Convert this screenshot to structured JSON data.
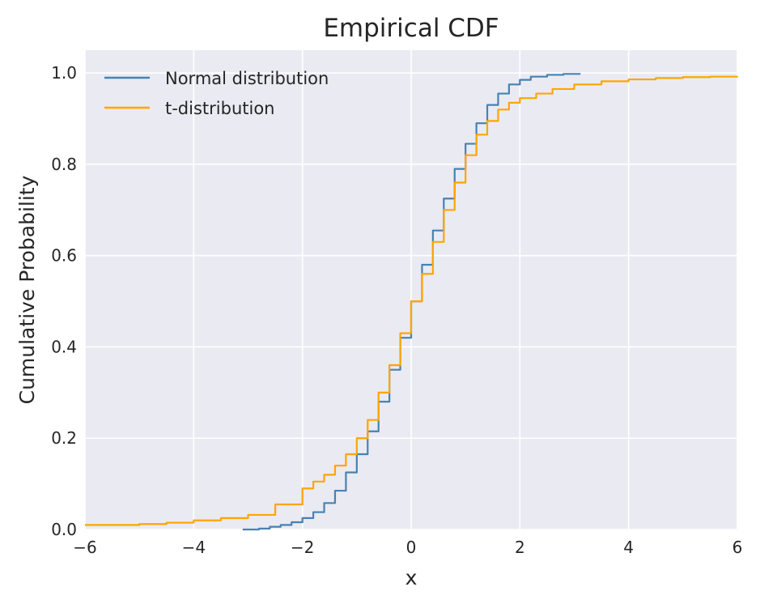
{
  "chart_data": {
    "type": "line",
    "title": "Empirical CDF",
    "xlabel": "x",
    "ylabel": "Cumulative Probability",
    "xlim": [
      -6,
      6
    ],
    "ylim": [
      0.0,
      1.05
    ],
    "xticks": [
      -6,
      -4,
      -2,
      0,
      2,
      4,
      6
    ],
    "xtick_labels": [
      "−6",
      "−4",
      "−2",
      "0",
      "2",
      "4",
      "6"
    ],
    "yticks": [
      0.0,
      0.2,
      0.4,
      0.6,
      0.8,
      1.0
    ],
    "ytick_labels": [
      "0.0",
      "0.2",
      "0.4",
      "0.6",
      "0.8",
      "1.0"
    ],
    "grid": true,
    "legend_position": "top-left",
    "background": "#eaeaf2",
    "series": [
      {
        "name": "Normal distribution",
        "color": "#4682b4",
        "x": [
          -3.1,
          -2.8,
          -2.6,
          -2.4,
          -2.2,
          -2.0,
          -1.8,
          -1.6,
          -1.4,
          -1.2,
          -1.0,
          -0.8,
          -0.6,
          -0.4,
          -0.2,
          0.0,
          0.2,
          0.4,
          0.6,
          0.8,
          1.0,
          1.2,
          1.4,
          1.6,
          1.8,
          2.0,
          2.2,
          2.5,
          2.8,
          3.1
        ],
        "y": [
          0.0,
          0.002,
          0.006,
          0.01,
          0.016,
          0.025,
          0.038,
          0.058,
          0.085,
          0.125,
          0.165,
          0.215,
          0.28,
          0.35,
          0.42,
          0.5,
          0.58,
          0.655,
          0.725,
          0.79,
          0.845,
          0.89,
          0.93,
          0.955,
          0.975,
          0.985,
          0.992,
          0.996,
          0.998,
          1.0
        ]
      },
      {
        "name": "t-distribution",
        "color": "#ffa500",
        "x": [
          -6.0,
          -5.0,
          -4.5,
          -4.0,
          -3.5,
          -3.0,
          -2.5,
          -2.0,
          -1.8,
          -1.6,
          -1.4,
          -1.2,
          -1.0,
          -0.8,
          -0.6,
          -0.4,
          -0.2,
          0.0,
          0.2,
          0.4,
          0.6,
          0.8,
          1.0,
          1.2,
          1.4,
          1.6,
          1.8,
          2.0,
          2.3,
          2.6,
          3.0,
          3.5,
          4.0,
          4.5,
          5.0,
          5.5,
          6.0
        ],
        "y": [
          0.01,
          0.012,
          0.015,
          0.02,
          0.025,
          0.032,
          0.055,
          0.09,
          0.105,
          0.12,
          0.14,
          0.165,
          0.2,
          0.24,
          0.3,
          0.36,
          0.43,
          0.5,
          0.56,
          0.63,
          0.7,
          0.76,
          0.82,
          0.865,
          0.895,
          0.92,
          0.935,
          0.945,
          0.955,
          0.965,
          0.975,
          0.982,
          0.986,
          0.989,
          0.991,
          0.992,
          0.993
        ]
      }
    ]
  }
}
